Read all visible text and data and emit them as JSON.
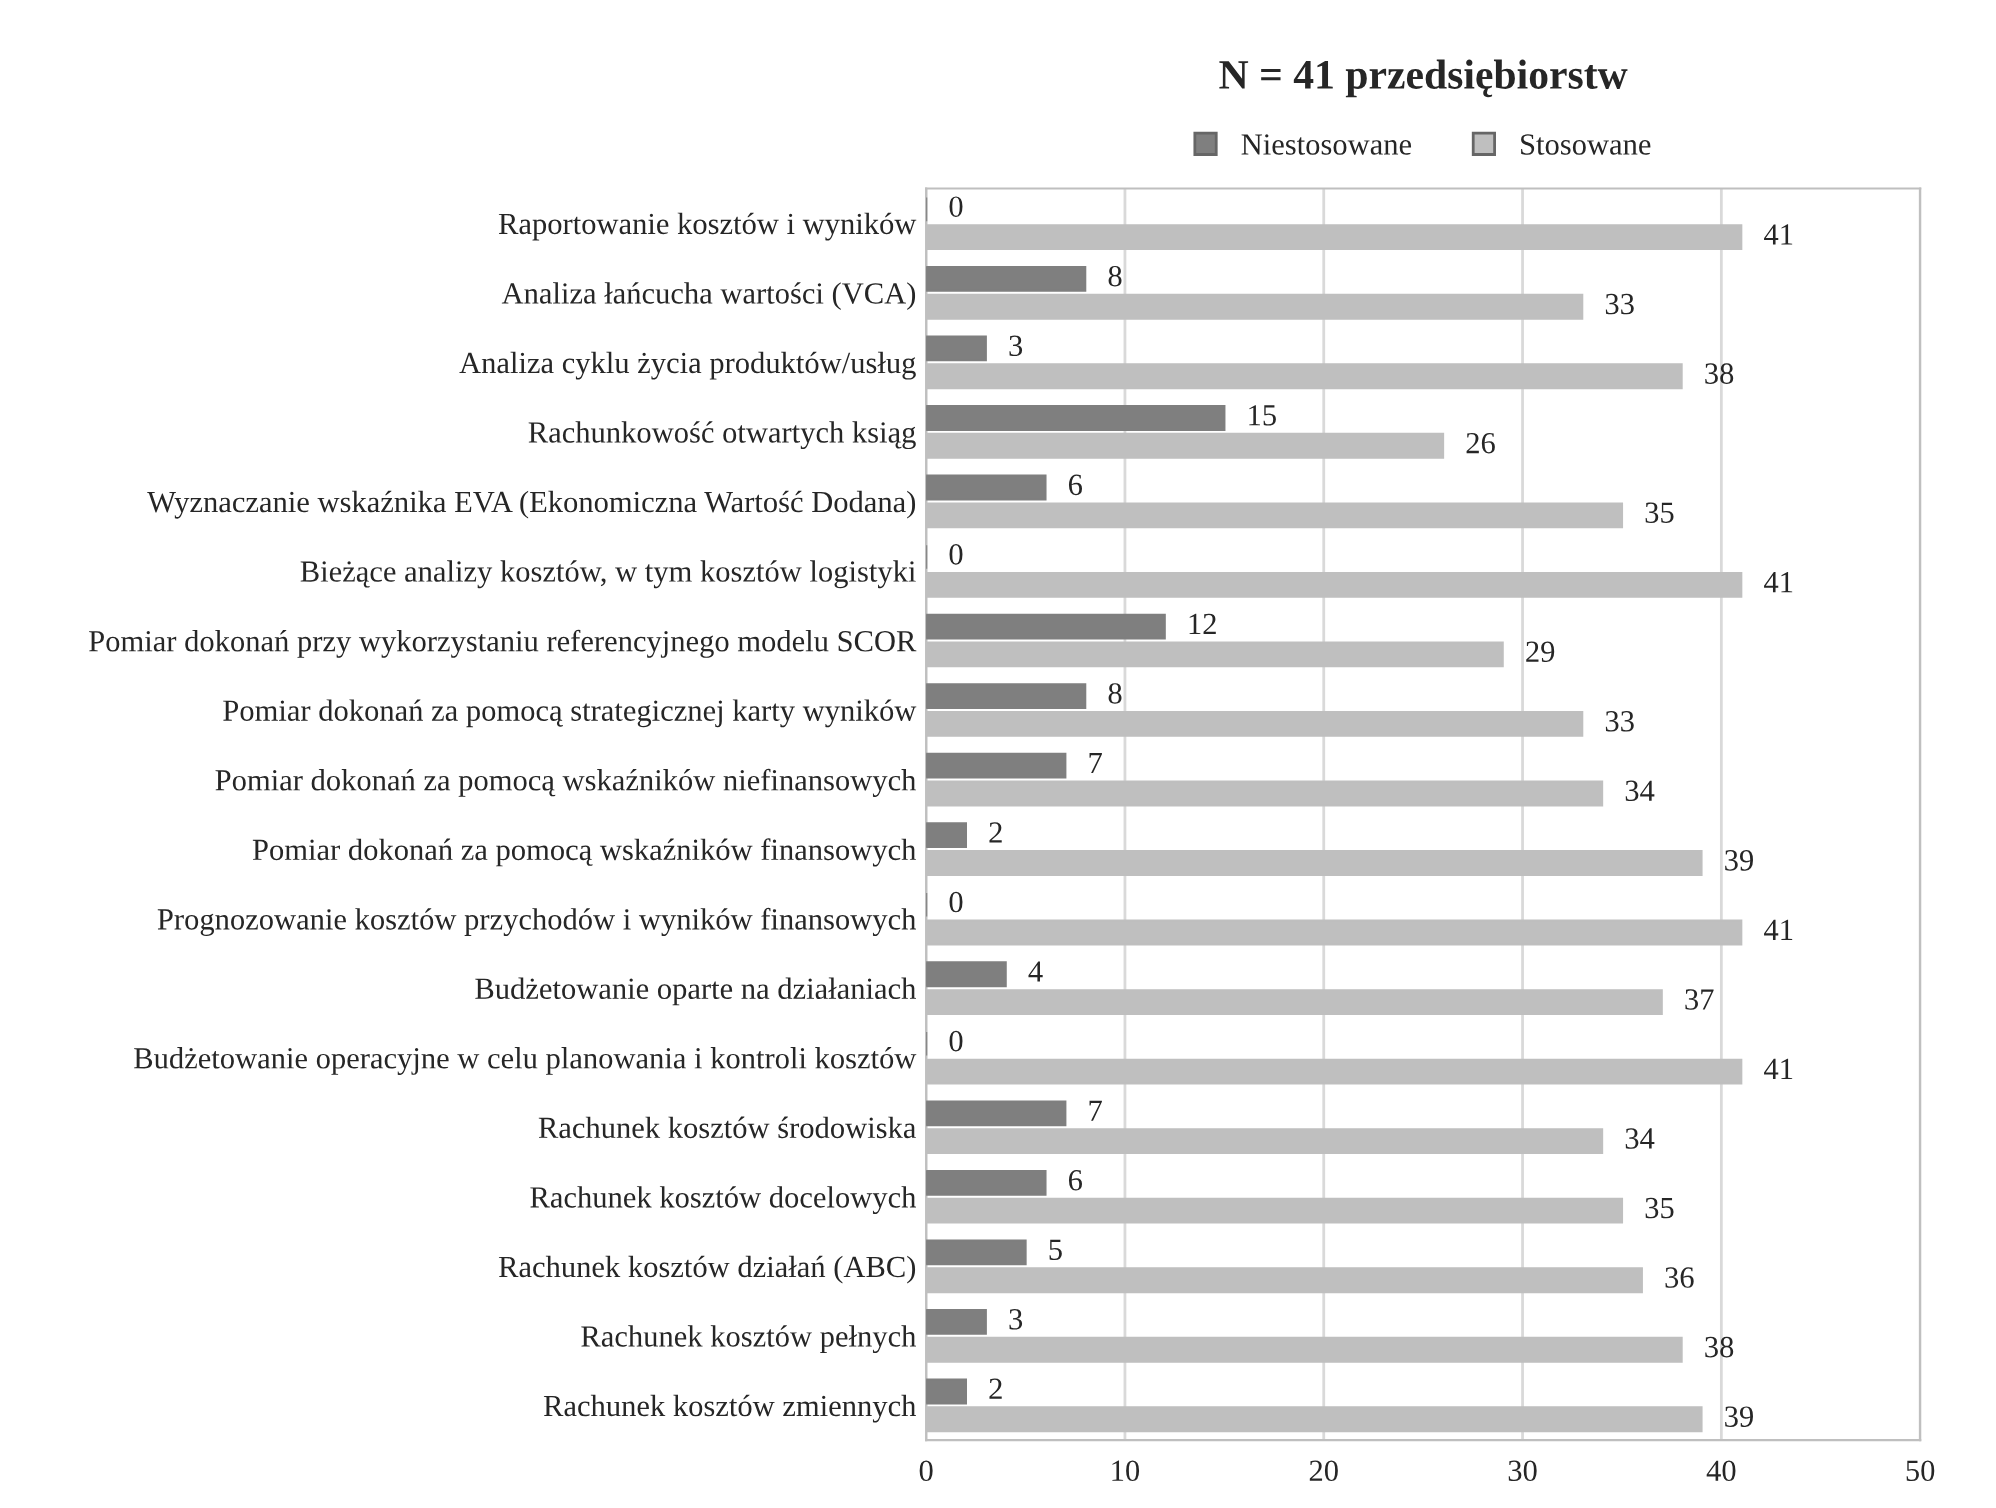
{
  "chart_data": {
    "type": "bar",
    "orientation": "horizontal",
    "title": "N = 41 przedsiębiorstw",
    "categories": [
      "Raportowanie kosztów i wyników",
      "Analiza łańcucha wartości (VCA)",
      "Analiza cyklu życia produktów/usług",
      "Rachunkowość otwartych ksiąg",
      "Wyznaczanie wskaźnika EVA (Ekonomiczna Wartość Dodana)",
      "Bieżące analizy kosztów, w tym kosztów logistyki",
      "Pomiar dokonań przy wykorzystaniu referencyjnego modelu SCOR",
      "Pomiar dokonań za pomocą strategicznej karty wyników",
      "Pomiar dokonań za pomocą wskaźników niefinansowych",
      "Pomiar dokonań za pomocą wskaźników finansowych",
      "Prognozowanie kosztów przychodów i wyników finansowych",
      "Budżetowanie oparte na działaniach",
      "Budżetowanie operacyjne w celu planowania i kontroli kosztów",
      "Rachunek kosztów środowiska",
      "Rachunek kosztów docelowych",
      "Rachunek kosztów działań (ABC)",
      "Rachunek kosztów pełnych",
      "Rachunek kosztów zmiennych"
    ],
    "series": [
      {
        "name": "Niestosowane",
        "color": "#7f7f7f",
        "values": [
          0,
          8,
          3,
          15,
          6,
          0,
          12,
          8,
          7,
          2,
          0,
          4,
          0,
          7,
          6,
          5,
          3,
          2
        ]
      },
      {
        "name": "Stosowane",
        "color": "#bfbfbf",
        "values": [
          41,
          33,
          38,
          26,
          35,
          41,
          29,
          33,
          34,
          39,
          41,
          37,
          41,
          34,
          35,
          36,
          38,
          39
        ]
      }
    ],
    "xlim": [
      0,
      50
    ],
    "xticks": [
      0,
      10,
      20,
      30,
      40,
      50
    ],
    "grid": "x",
    "legend": "top",
    "data_labels": true
  }
}
